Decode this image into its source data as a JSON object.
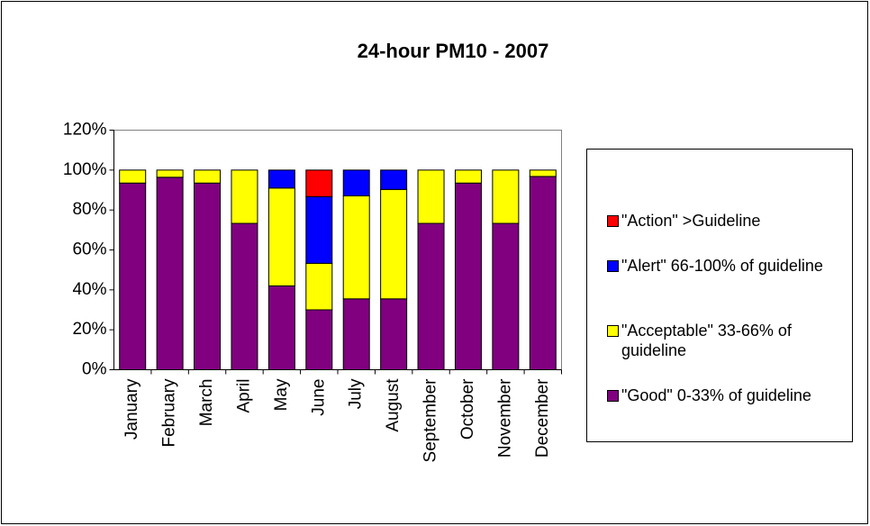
{
  "chart_data": {
    "type": "stacked-bar",
    "title": "24-hour PM10 - 2007",
    "categories": [
      "January",
      "February",
      "March",
      "April",
      "May",
      "June",
      "July",
      "August",
      "September",
      "October",
      "November",
      "December"
    ],
    "series": [
      {
        "name": "\"Good\" 0-33% of guideline",
        "color": "#800080",
        "values": [
          93.5,
          96.4,
          93.5,
          73.3,
          42,
          30,
          35.5,
          35.5,
          73.3,
          93.5,
          73.3,
          96.8
        ]
      },
      {
        "name": "\"Acceptable\" 33-66% of guideline",
        "color": "#ffff00",
        "values": [
          6.5,
          3.6,
          6.5,
          26.7,
          49,
          23.3,
          51.6,
          54.8,
          26.7,
          6.5,
          26.7,
          3.2
        ]
      },
      {
        "name": "\"Alert\" 66-100% of guideline",
        "color": "#0000ff",
        "values": [
          0,
          0,
          0,
          0,
          9,
          33.4,
          12.9,
          9.7,
          0,
          0,
          0,
          0
        ]
      },
      {
        "name": "\"Action\" >Guideline",
        "color": "#ff0000",
        "values": [
          0,
          0,
          0,
          0,
          0,
          13.3,
          0,
          0,
          0,
          0,
          0,
          0
        ]
      }
    ],
    "ylim": [
      0,
      120
    ],
    "yticks": [
      {
        "value": 0,
        "label": "0%"
      },
      {
        "value": 20,
        "label": "20%"
      },
      {
        "value": 40,
        "label": "40%"
      },
      {
        "value": 60,
        "label": "60%"
      },
      {
        "value": 80,
        "label": "80%"
      },
      {
        "value": 100,
        "label": "100%"
      },
      {
        "value": 120,
        "label": "120%"
      }
    ],
    "grid": false,
    "legend": "right"
  }
}
